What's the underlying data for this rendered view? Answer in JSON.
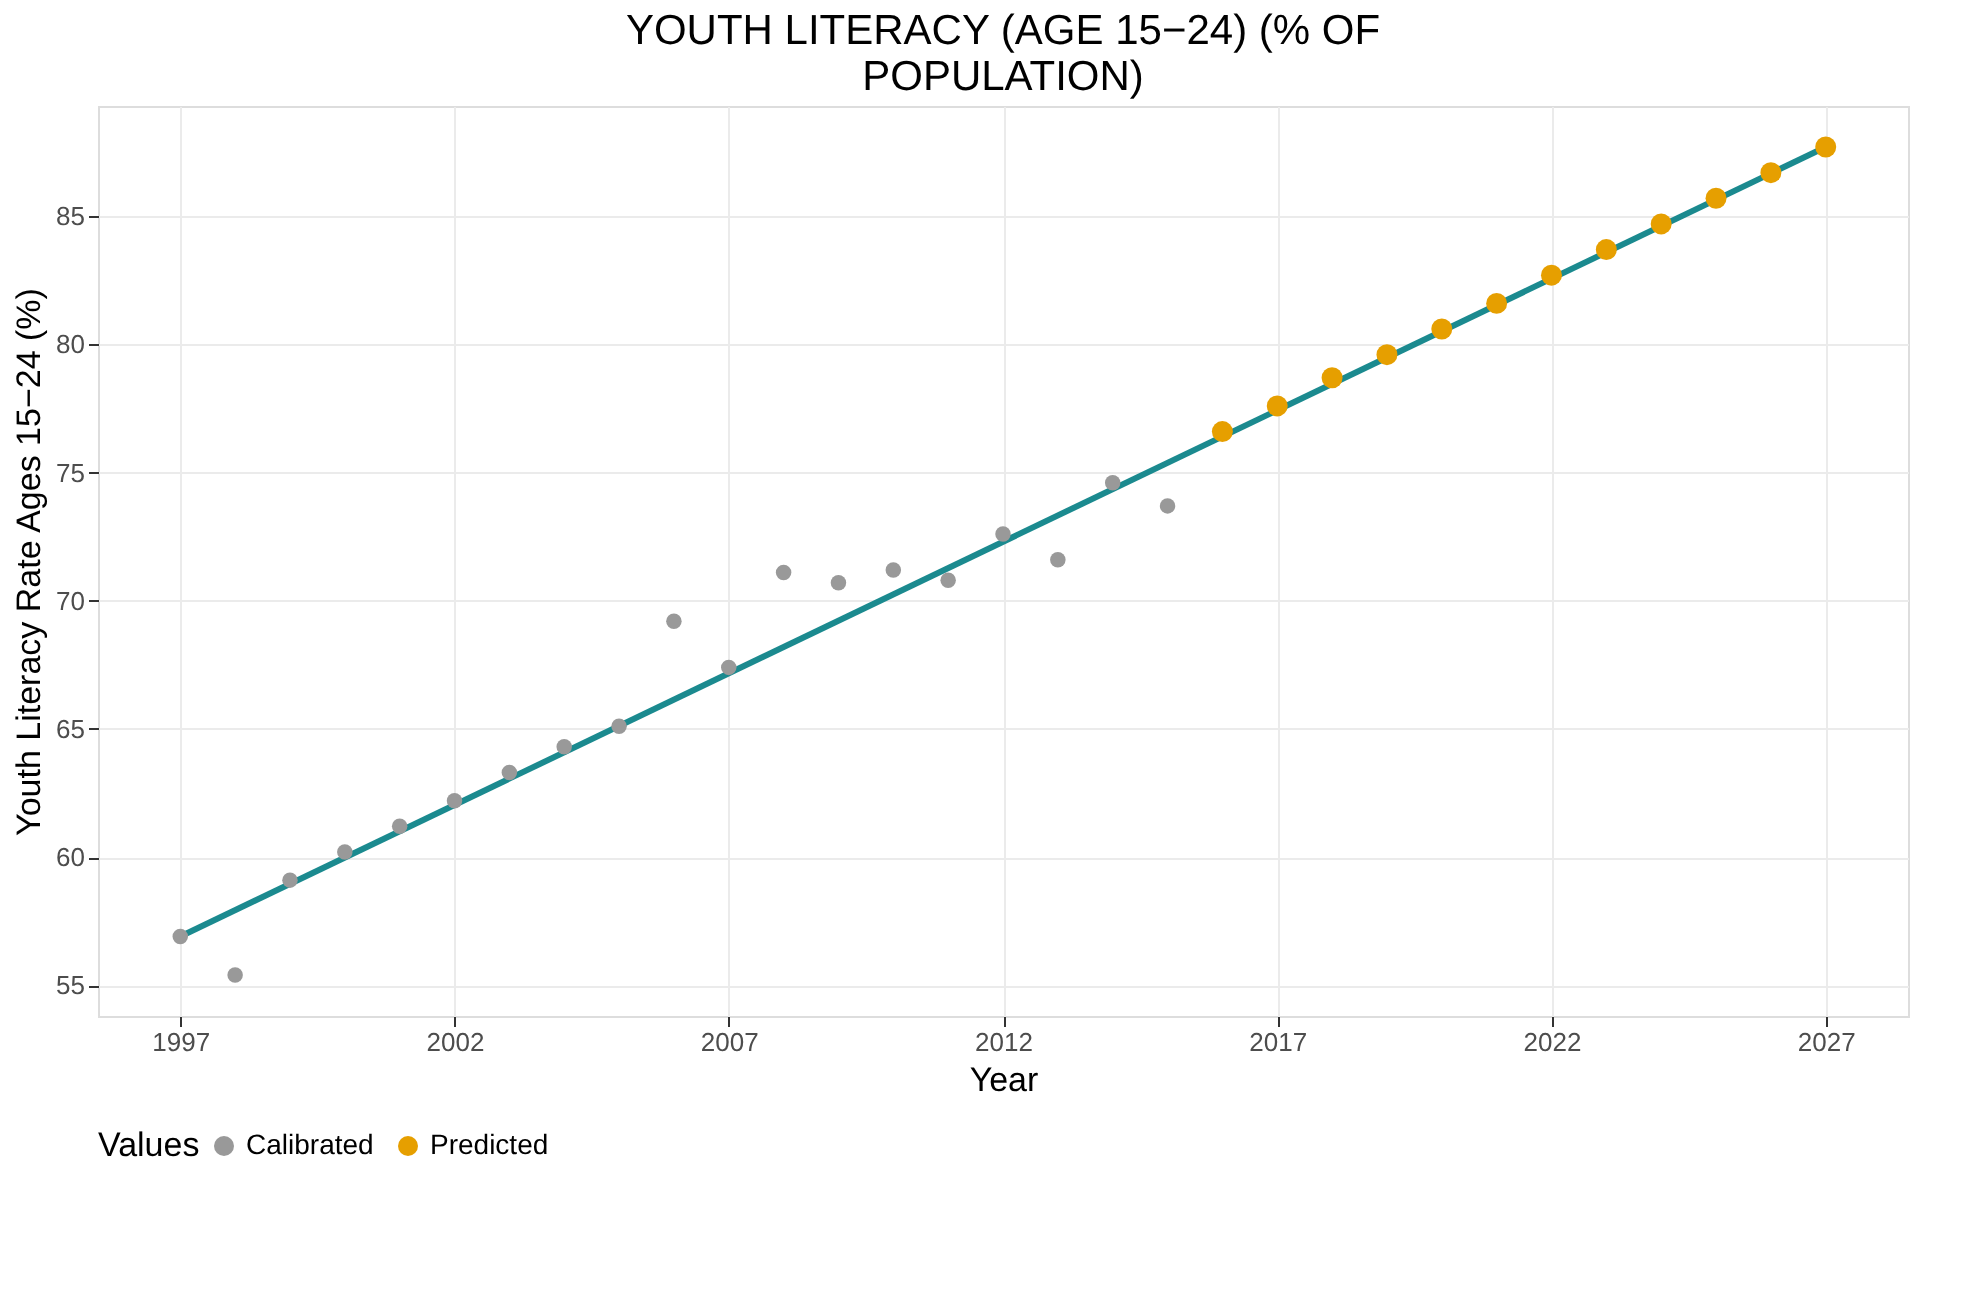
{
  "chart_data": {
    "type": "scatter",
    "title": "YOUTH LITERACY (AGE 15−24) (% OF POPULATION)",
    "xlabel": "Year",
    "ylabel": "Youth Literacy Rate Ages 15−24 (%)",
    "legend_title": "Values",
    "series": [
      {
        "name": "Calibrated",
        "color": "#999999",
        "x": [
          1997,
          1998,
          1999,
          2000,
          2001,
          2002,
          2003,
          2004,
          2005,
          2006,
          2007,
          2008,
          2009,
          2010,
          2011,
          2012,
          2013,
          2014,
          2015
        ],
        "values": [
          56.9,
          55.4,
          59.1,
          60.2,
          61.2,
          62.2,
          63.3,
          64.3,
          65.1,
          69.2,
          67.4,
          71.1,
          70.7,
          71.2,
          70.8,
          72.6,
          71.6,
          74.6,
          73.7
        ]
      },
      {
        "name": "Predicted",
        "color": "#e69f00",
        "x": [
          2016,
          2017,
          2018,
          2019,
          2020,
          2021,
          2022,
          2023,
          2024,
          2025,
          2026,
          2027
        ],
        "values": [
          76.6,
          77.6,
          78.7,
          79.6,
          80.6,
          81.6,
          82.7,
          83.7,
          84.7,
          85.7,
          86.7,
          87.7
        ]
      },
      {
        "color": "#1b8a8f",
        "type": "line",
        "x": [
          1997,
          2027
        ],
        "values": [
          56.9,
          87.7
        ]
      }
    ],
    "xlim": [
      1995.5,
      2028.5
    ],
    "xticks": [
      1997,
      2002,
      2007,
      2012,
      2017,
      2022,
      2027
    ],
    "ylim": [
      53.8,
      89.3
    ],
    "yticks": [
      55,
      60,
      65,
      70,
      75,
      80,
      85
    ],
    "grid": true,
    "legend": "bottom",
    "marker": "circle",
    "line_style": "solid"
  }
}
